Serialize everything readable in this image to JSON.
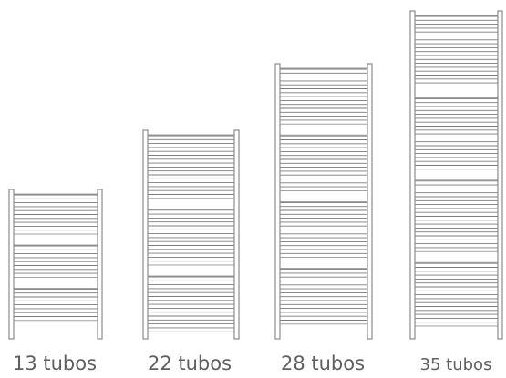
{
  "colors": {
    "frame_stroke": "#8c8c8c",
    "frame_fill": "#ffffff",
    "tube_stroke": "#7a7a7a",
    "label_text": "#5f5f5f"
  },
  "radiators": [
    {
      "label": "13 tubos",
      "tube_count": 13
    },
    {
      "label": "22 tubos",
      "tube_count": 22
    },
    {
      "label": "28 tubos",
      "tube_count": 28
    },
    {
      "label": "35 tubos",
      "tube_count": 35
    }
  ]
}
